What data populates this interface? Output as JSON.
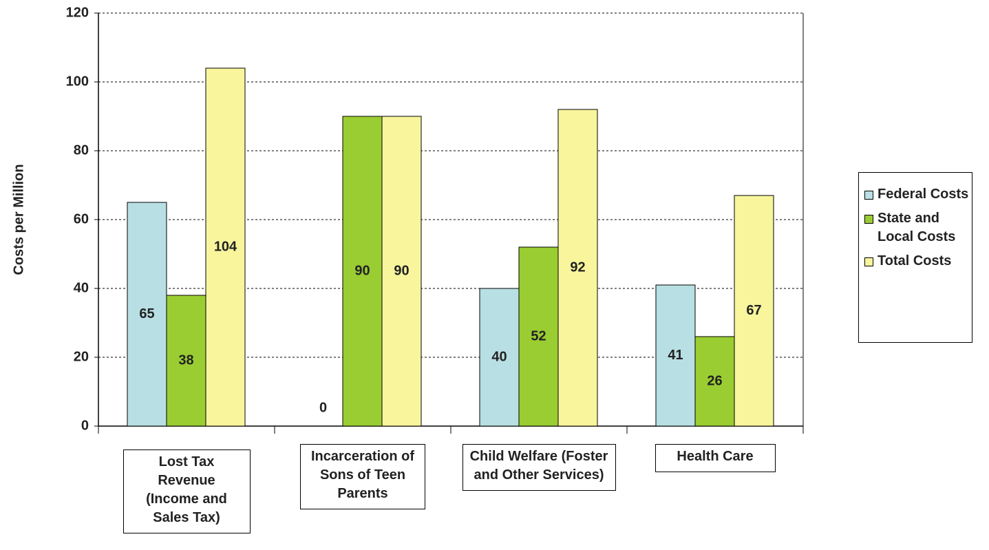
{
  "chart_data": {
    "type": "bar",
    "y_label": "Costs per Million",
    "categories": [
      "Lost Tax Revenue (Income and Sales Tax)",
      "Incarceration of Sons of Teen Parents",
      "Child Welfare (Foster and Other Services)",
      "Health Care"
    ],
    "series": [
      {
        "name": "Federal Costs",
        "color": "#b8dfe3",
        "values": [
          65,
          0,
          40,
          41
        ]
      },
      {
        "name": "State and Local Costs",
        "color": "#9acd32",
        "values": [
          38,
          90,
          52,
          26
        ]
      },
      {
        "name": "Total Costs",
        "color": "#f8f59c",
        "values": [
          104,
          90,
          92,
          67
        ]
      }
    ],
    "ylim": [
      0,
      120
    ],
    "yticks": [
      0,
      20,
      40,
      60,
      80,
      100,
      120
    ],
    "grid": true,
    "legend": "right"
  }
}
